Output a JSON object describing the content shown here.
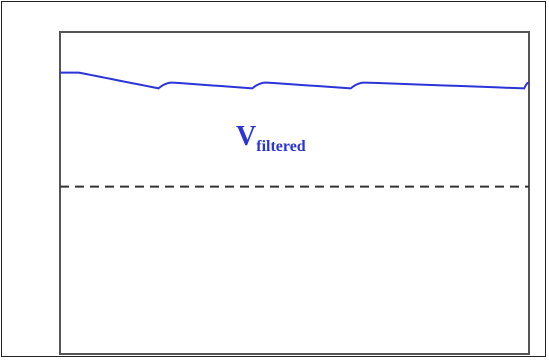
{
  "colors": {
    "waveform": "#2b35d6",
    "dashed_line": "#333333",
    "frame": "#555555"
  },
  "chart_data": {
    "type": "line",
    "title": "",
    "xlabel": "",
    "ylabel": "",
    "grid": false,
    "xlim": [
      0,
      1
    ],
    "ylim": [
      0,
      1
    ],
    "series": [
      {
        "name": "Vfiltered",
        "label_main": "V",
        "label_sub": "filtered",
        "style": "solid",
        "color": "#2b35d6",
        "x": [
          0.0,
          0.04,
          0.21,
          0.24,
          0.41,
          0.44,
          0.62,
          0.65,
          0.99,
          1.0
        ],
        "y": [
          0.874,
          0.874,
          0.825,
          0.843,
          0.825,
          0.843,
          0.825,
          0.843,
          0.825,
          0.843
        ]
      },
      {
        "name": "",
        "style": "dashed",
        "color": "#333333",
        "x": [
          0.0,
          1.0
        ],
        "y": [
          0.52,
          0.52
        ]
      }
    ]
  }
}
